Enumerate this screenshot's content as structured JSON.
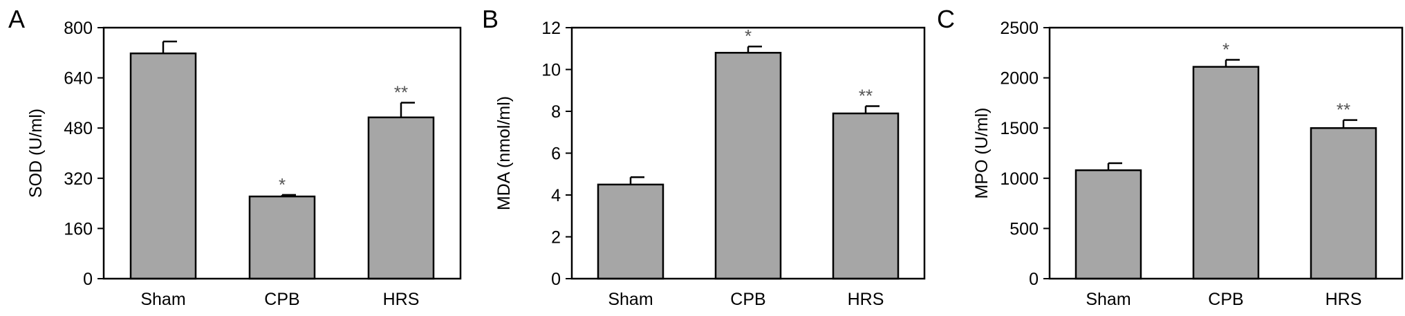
{
  "chart_data": [
    {
      "type": "bar",
      "panel": "A",
      "categories": [
        "Sham",
        "CPB",
        "HRS"
      ],
      "values": [
        718,
        262,
        514
      ],
      "errors": [
        38,
        5,
        47
      ],
      "significance": [
        "",
        "*",
        "**"
      ],
      "ylabel": "SOD (U/ml)",
      "ylim": [
        0,
        800
      ],
      "yticks": [
        0,
        160,
        320,
        480,
        640,
        800
      ],
      "color": "#a6a6a6"
    },
    {
      "type": "bar",
      "panel": "B",
      "categories": [
        "Sham",
        "CPB",
        "HRS"
      ],
      "values": [
        4.5,
        10.8,
        7.9
      ],
      "errors": [
        0.35,
        0.3,
        0.35
      ],
      "significance": [
        "",
        "*",
        "**"
      ],
      "ylabel": "MDA (nmol/ml)",
      "ylim": [
        0,
        12
      ],
      "yticks": [
        0,
        2,
        4,
        6,
        8,
        10,
        12
      ],
      "color": "#a6a6a6"
    },
    {
      "type": "bar",
      "panel": "C",
      "categories": [
        "Sham",
        "CPB",
        "HRS"
      ],
      "values": [
        1080,
        2110,
        1500
      ],
      "errors": [
        70,
        70,
        80
      ],
      "significance": [
        "",
        "*",
        "**"
      ],
      "ylabel": "MPO (U/ml)",
      "ylim": [
        0,
        2500
      ],
      "yticks": [
        0,
        500,
        1000,
        1500,
        2000,
        2500
      ],
      "color": "#a6a6a6"
    }
  ]
}
